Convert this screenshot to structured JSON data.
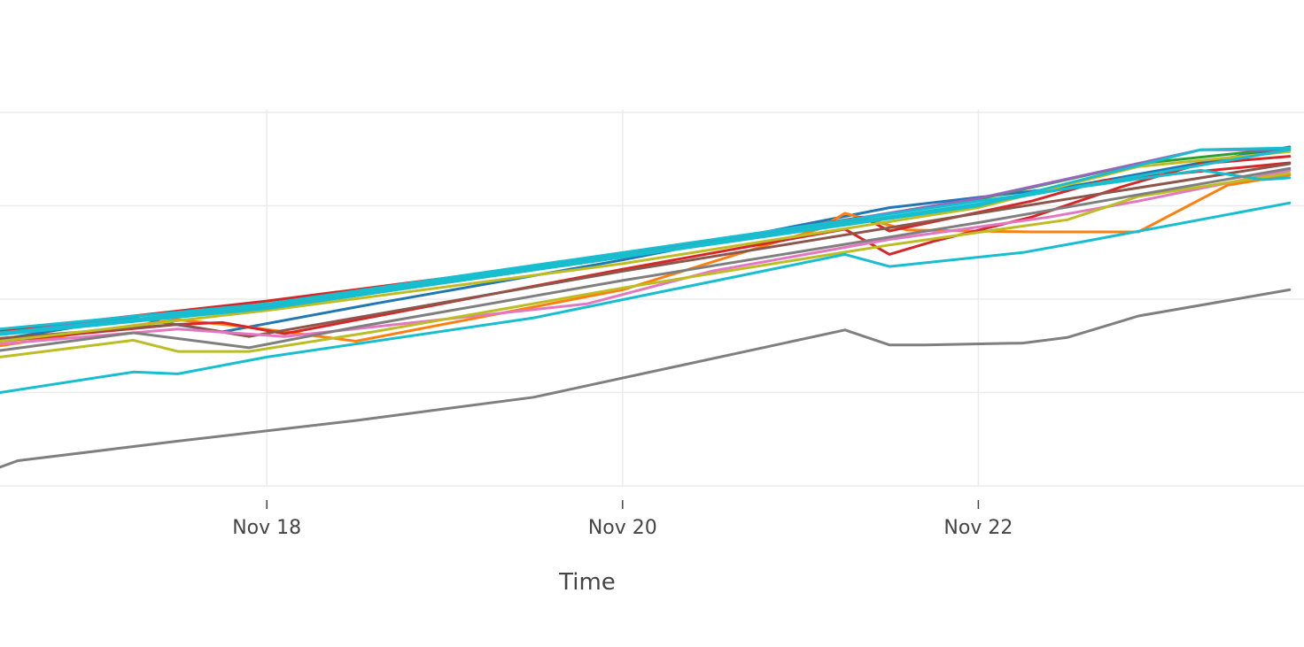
{
  "chart_data": {
    "type": "line",
    "xlabel": "Time",
    "ylabel": "",
    "title": "",
    "x_ticks": [
      {
        "label": "Nov 18",
        "day": 18
      },
      {
        "label": "Nov 20",
        "day": 20
      },
      {
        "label": "Nov 22",
        "day": 22
      }
    ],
    "xlim": [
      "2020-11-16 12:00",
      "2020-11-23 18:00"
    ],
    "ylim": [
      0,
      4.1
    ],
    "y_gridlines": [
      0,
      1,
      2,
      3,
      4
    ],
    "grid": true,
    "legend": "none",
    "series": [
      {
        "color": "#1f77b4",
        "x": [
          16.5,
          17.25,
          17.75,
          18.6,
          20,
          21.5,
          22.5,
          23.25,
          23.75
        ],
        "y": [
          1.57,
          1.8,
          1.65,
          1.95,
          2.42,
          2.98,
          3.2,
          3.46,
          3.63
        ]
      },
      {
        "color": "#ff7f0e",
        "x": [
          16.5,
          17.1,
          17.5,
          17.9,
          18.5,
          20,
          21.1,
          21.25,
          21.6,
          22.3,
          22.9,
          23.4,
          23.75
        ],
        "y": [
          1.5,
          1.68,
          1.78,
          1.7,
          1.55,
          2.1,
          2.75,
          2.92,
          2.74,
          2.72,
          2.72,
          3.22,
          3.33
        ]
      },
      {
        "color": "#2ca02c",
        "x": [
          16.5,
          18,
          20,
          22,
          22.9,
          23.75
        ],
        "y": [
          1.65,
          1.9,
          2.45,
          3.07,
          3.45,
          3.62
        ]
      },
      {
        "color": "#d62728",
        "x": [
          16.5,
          18,
          20,
          21.35,
          21.5,
          22.3,
          22.7,
          23.75
        ],
        "y": [
          1.66,
          1.98,
          2.47,
          2.88,
          2.73,
          3.05,
          3.27,
          3.46
        ]
      },
      {
        "color": "#d62728",
        "x": [
          16.5,
          17.5,
          17.75,
          18.1,
          20,
          21.25,
          21.5,
          21.75,
          22.3,
          22.8,
          23.25,
          23.75
        ],
        "y": [
          1.55,
          1.73,
          1.75,
          1.63,
          2.32,
          2.75,
          2.48,
          2.62,
          2.88,
          3.2,
          3.45,
          3.53
        ]
      },
      {
        "color": "#9467bd",
        "x": [
          16.5,
          17.25,
          18,
          20,
          22,
          23.25,
          23.75
        ],
        "y": [
          1.63,
          1.82,
          1.92,
          2.45,
          3.08,
          3.6,
          3.6
        ]
      },
      {
        "color": "#8c564b",
        "x": [
          16.5,
          17.5,
          17.9,
          18.5,
          20,
          22,
          23.75
        ],
        "y": [
          1.58,
          1.73,
          1.6,
          1.8,
          2.3,
          2.92,
          3.45
        ]
      },
      {
        "color": "#e377c2",
        "x": [
          16.5,
          17.5,
          18.1,
          19.8,
          20.5,
          21.5,
          22.4,
          22.9,
          23.75
        ],
        "y": [
          1.52,
          1.68,
          1.6,
          1.95,
          2.3,
          2.64,
          2.88,
          3.05,
          3.38
        ]
      },
      {
        "color": "#bcbd22",
        "x": [
          16.5,
          17.25,
          17.5,
          17.9,
          18.6,
          20,
          21.5,
          22.5,
          22.9,
          23.75
        ],
        "y": [
          1.38,
          1.56,
          1.44,
          1.44,
          1.65,
          2.12,
          2.58,
          2.85,
          3.1,
          3.35
        ]
      },
      {
        "color": "#bcbd22",
        "x": [
          16.5,
          18,
          20,
          22,
          22.9,
          23.75
        ],
        "y": [
          1.55,
          1.88,
          2.38,
          2.98,
          3.42,
          3.58
        ]
      },
      {
        "color": "#17becf",
        "x": [
          16.5,
          17.25,
          17.5,
          18,
          19.5,
          21.25,
          21.5,
          22.25,
          22.6,
          23.75
        ],
        "y": [
          1.0,
          1.22,
          1.2,
          1.38,
          1.8,
          2.48,
          2.35,
          2.5,
          2.62,
          3.03
        ]
      },
      {
        "color": "#17becf",
        "x": [
          16.5,
          18,
          20,
          22,
          23.25,
          23.6,
          23.75
        ],
        "y": [
          1.68,
          1.95,
          2.5,
          3.05,
          3.38,
          3.28,
          3.3
        ]
      },
      {
        "color": "#17becf",
        "x": [
          16.5,
          18,
          20,
          22,
          23.25,
          23.75
        ],
        "y": [
          1.62,
          1.9,
          2.45,
          3.0,
          3.6,
          3.62
        ]
      },
      {
        "color": "#17becf",
        "x": [
          16.5,
          18,
          20,
          22,
          23.75
        ],
        "y": [
          1.64,
          1.93,
          2.47,
          3.02,
          3.6
        ]
      },
      {
        "color": "#7f7f7f",
        "x": [
          16.5,
          16.6,
          17.5,
          18.5,
          19.5,
          21.25,
          21.5,
          21.7,
          22.25,
          22.5,
          22.9,
          23.75
        ],
        "y": [
          0.2,
          0.27,
          0.48,
          0.7,
          0.95,
          1.67,
          1.51,
          1.51,
          1.53,
          1.59,
          1.82,
          2.1
        ]
      },
      {
        "color": "#7f7f7f",
        "x": [
          16.5,
          17.25,
          17.9,
          18.5,
          20,
          22,
          23.75
        ],
        "y": [
          1.45,
          1.64,
          1.48,
          1.7,
          2.2,
          2.82,
          3.4
        ]
      }
    ]
  }
}
